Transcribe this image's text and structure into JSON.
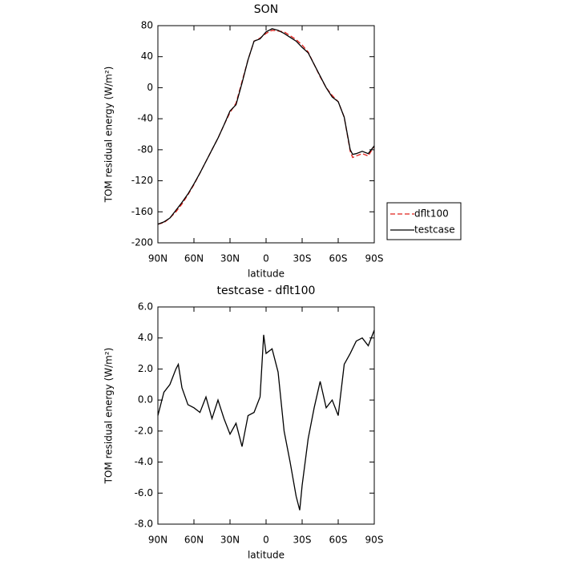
{
  "chart_data": [
    {
      "type": "line",
      "title": "SON",
      "xlabel": "latitude",
      "ylabel": "TOM residual energy (W/m²)",
      "x": [
        90,
        85,
        80,
        75,
        70,
        65,
        60,
        55,
        50,
        45,
        40,
        35,
        30,
        25,
        20,
        15,
        10,
        5,
        0,
        -5,
        -10,
        -15,
        -20,
        -25,
        -30,
        -35,
        -40,
        -45,
        -50,
        -55,
        -60,
        -65,
        -70,
        -72,
        -75,
        -80,
        -85,
        -90
      ],
      "series": [
        {
          "name": "dflt100",
          "color": "#e0201b",
          "dash": true,
          "values": [
            -176,
            -174,
            -168,
            -160,
            -150,
            -138,
            -125,
            -110,
            -95,
            -80,
            -65,
            -48,
            -32,
            -20,
            8,
            36,
            60,
            64,
            70,
            74,
            73,
            72,
            67,
            62,
            55,
            46,
            30,
            14,
            0,
            -10,
            -18,
            -38,
            -82,
            -90,
            -88,
            -85,
            -88,
            -75
          ]
        },
        {
          "name": "testcase",
          "color": "#000000",
          "dash": false,
          "values": [
            -176,
            -173,
            -168,
            -158,
            -148,
            -137,
            -124,
            -110,
            -95,
            -80,
            -65,
            -48,
            -30,
            -22,
            6,
            36,
            60,
            63,
            72,
            76,
            74,
            70,
            65,
            60,
            52,
            45,
            30,
            15,
            0,
            -12,
            -18,
            -38,
            -80,
            -86,
            -85,
            -82,
            -85,
            -75
          ]
        }
      ],
      "xlim": [
        90,
        -90
      ],
      "xticks": [
        {
          "value": 90,
          "label": "90N"
        },
        {
          "value": 60,
          "label": "60N"
        },
        {
          "value": 30,
          "label": "30N"
        },
        0,
        {
          "value": -30,
          "label": "30S"
        },
        {
          "value": -60,
          "label": "60S"
        },
        {
          "value": -90,
          "label": "90S"
        }
      ],
      "ylim": [
        -200,
        80
      ],
      "yticks": [
        80,
        40,
        0,
        -40,
        -80,
        -120,
        -160,
        -200
      ],
      "legend": "outside right"
    },
    {
      "type": "line",
      "title": "testcase - dflt100",
      "xlabel": "latitude",
      "ylabel": "TOM residual energy (W/m²)",
      "x": [
        90,
        85,
        80,
        75,
        73,
        70,
        65,
        60,
        55,
        50,
        45,
        40,
        35,
        30,
        25,
        20,
        15,
        10,
        5,
        2,
        0,
        -5,
        -10,
        -15,
        -20,
        -25,
        -28,
        -30,
        -35,
        -40,
        -45,
        -50,
        -55,
        -60,
        -65,
        -70,
        -75,
        -80,
        -85,
        -90
      ],
      "series": [
        {
          "color": "#000000",
          "dash": false,
          "values": [
            -1.0,
            0.5,
            1.0,
            2.0,
            2.3,
            0.8,
            -0.3,
            -0.5,
            -0.8,
            0.2,
            -1.2,
            0.0,
            -1.2,
            -2.2,
            -1.5,
            -3.0,
            -1.0,
            -0.8,
            0.2,
            4.2,
            3.0,
            3.3,
            1.8,
            -2.0,
            -4.0,
            -6.2,
            -7.1,
            -5.5,
            -2.5,
            -0.5,
            1.2,
            -0.5,
            0.0,
            -1.0,
            2.3,
            3.0,
            3.8,
            4.0,
            3.5,
            4.5
          ]
        }
      ],
      "xlim": [
        90,
        -90
      ],
      "xticks": [
        {
          "value": 90,
          "label": "90N"
        },
        {
          "value": 60,
          "label": "60N"
        },
        {
          "value": 30,
          "label": "30N"
        },
        0,
        {
          "value": -30,
          "label": "30S"
        },
        {
          "value": -60,
          "label": "60S"
        },
        {
          "value": -90,
          "label": "90S"
        }
      ],
      "ylim": [
        -8,
        6
      ],
      "yticks": [
        {
          "value": 6,
          "label": "6.0"
        },
        {
          "value": 4,
          "label": "4.0"
        },
        {
          "value": 2,
          "label": "2.0"
        },
        {
          "value": 0,
          "label": "0.0"
        },
        {
          "value": -2,
          "label": "-2.0"
        },
        {
          "value": -4,
          "label": "-4.0"
        },
        {
          "value": -6,
          "label": "-6.0"
        },
        {
          "value": -8,
          "label": "-8.0"
        }
      ]
    }
  ]
}
